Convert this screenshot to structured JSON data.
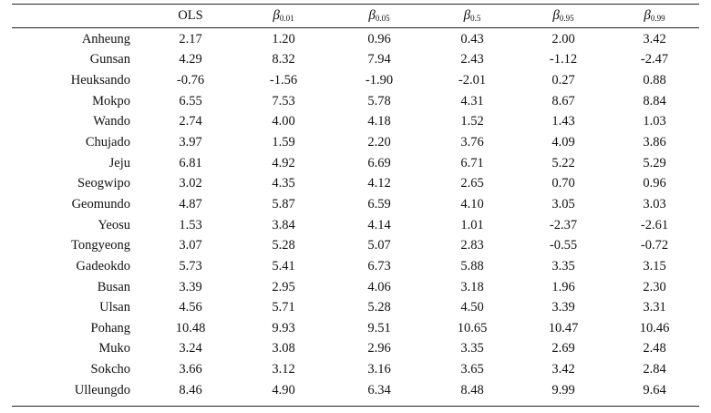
{
  "table": {
    "headers": [
      {
        "label": "",
        "beta": false
      },
      {
        "label": "OLS",
        "beta": false
      },
      {
        "label": "β",
        "beta": true,
        "sub": "0.01"
      },
      {
        "label": "β",
        "beta": true,
        "sub": "0.05"
      },
      {
        "label": "β",
        "beta": true,
        "sub": "0.5"
      },
      {
        "label": "β",
        "beta": true,
        "sub": "0.95"
      },
      {
        "label": "β",
        "beta": true,
        "sub": "0.99"
      }
    ],
    "rows": [
      {
        "station": "Anheung",
        "values": [
          "2.17",
          "1.20",
          "0.96",
          "0.43",
          "2.00",
          "3.42"
        ]
      },
      {
        "station": "Gunsan",
        "values": [
          "4.29",
          "8.32",
          "7.94",
          "2.43",
          "-1.12",
          "-2.47"
        ]
      },
      {
        "station": "Heuksando",
        "values": [
          "-0.76",
          "-1.56",
          "-1.90",
          "-2.01",
          "0.27",
          "0.88"
        ]
      },
      {
        "station": "Mokpo",
        "values": [
          "6.55",
          "7.53",
          "5.78",
          "4.31",
          "8.67",
          "8.84"
        ]
      },
      {
        "station": "Wando",
        "values": [
          "2.74",
          "4.00",
          "4.18",
          "1.52",
          "1.43",
          "1.03"
        ]
      },
      {
        "station": "Chujado",
        "values": [
          "3.97",
          "1.59",
          "2.20",
          "3.76",
          "4.09",
          "3.86"
        ]
      },
      {
        "station": "Jeju",
        "values": [
          "6.81",
          "4.92",
          "6.69",
          "6.71",
          "5.22",
          "5.29"
        ]
      },
      {
        "station": "Seogwipo",
        "values": [
          "3.02",
          "4.35",
          "4.12",
          "2.65",
          "0.70",
          "0.96"
        ]
      },
      {
        "station": "Geomundo",
        "values": [
          "4.87",
          "5.87",
          "6.59",
          "4.10",
          "3.05",
          "3.03"
        ]
      },
      {
        "station": "Yeosu",
        "values": [
          "1.53",
          "3.84",
          "4.14",
          "1.01",
          "-2.37",
          "-2.61"
        ]
      },
      {
        "station": "Tongyeong",
        "values": [
          "3.07",
          "5.28",
          "5.07",
          "2.83",
          "-0.55",
          "-0.72"
        ]
      },
      {
        "station": "Gadeokdo",
        "values": [
          "5.73",
          "5.41",
          "6.73",
          "5.88",
          "3.35",
          "3.15"
        ]
      },
      {
        "station": "Busan",
        "values": [
          "3.39",
          "2.95",
          "4.06",
          "3.18",
          "1.96",
          "2.30"
        ]
      },
      {
        "station": "Ulsan",
        "values": [
          "4.56",
          "5.71",
          "5.28",
          "4.50",
          "3.39",
          "3.31"
        ]
      },
      {
        "station": "Pohang",
        "values": [
          "10.48",
          "9.93",
          "9.51",
          "10.65",
          "10.47",
          "10.46"
        ]
      },
      {
        "station": "Muko",
        "values": [
          "3.24",
          "3.08",
          "2.96",
          "3.35",
          "2.69",
          "2.48"
        ]
      },
      {
        "station": "Sokcho",
        "values": [
          "3.66",
          "3.12",
          "3.16",
          "3.65",
          "3.42",
          "2.84"
        ]
      },
      {
        "station": "Ulleungdo",
        "values": [
          "8.46",
          "4.90",
          "6.34",
          "8.48",
          "9.99",
          "9.64"
        ]
      }
    ]
  }
}
